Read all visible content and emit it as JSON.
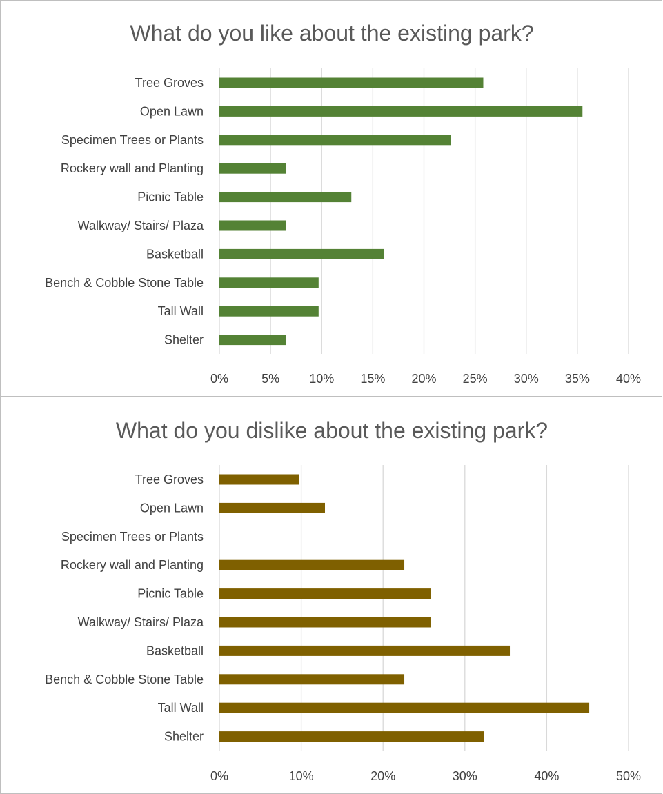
{
  "chart_data": [
    {
      "type": "bar",
      "orientation": "horizontal",
      "title": "What do you like about the existing park?",
      "categories": [
        "Tree Groves",
        "Open Lawn",
        "Specimen Trees or Plants",
        "Rockery wall and Planting",
        "Picnic Table",
        "Walkway/ Stairs/ Plaza",
        "Basketball ",
        "Bench & Cobble Stone Table",
        "Tall Wall",
        "Shelter"
      ],
      "values": [
        0.258,
        0.355,
        0.226,
        0.065,
        0.129,
        0.065,
        0.161,
        0.097,
        0.097,
        0.065
      ],
      "xlim": [
        0,
        0.4
      ],
      "xticks": [
        0,
        0.05,
        0.1,
        0.15,
        0.2,
        0.25,
        0.3,
        0.35,
        0.4
      ],
      "xtick_labels": [
        "0%",
        "5%",
        "10%",
        "15%",
        "20%",
        "25%",
        "30%",
        "35%",
        "40%"
      ],
      "color": "#548235",
      "grid": "vertical",
      "legend": "none",
      "xlabel": "",
      "ylabel": ""
    },
    {
      "type": "bar",
      "orientation": "horizontal",
      "title": "What do you dislike about the existing park?",
      "categories": [
        "Tree Groves",
        "Open Lawn",
        "Specimen Trees or Plants",
        "Rockery wall and Planting",
        "Picnic Table",
        "Walkway/ Stairs/ Plaza",
        "Basketball ",
        "Bench & Cobble Stone Table",
        "Tall Wall",
        "Shelter"
      ],
      "values": [
        0.097,
        0.129,
        0,
        0.226,
        0.258,
        0.258,
        0.355,
        0.226,
        0.452,
        0.323
      ],
      "xlim": [
        0,
        0.5
      ],
      "xticks": [
        0,
        0.1,
        0.2,
        0.3,
        0.4,
        0.5
      ],
      "xtick_labels": [
        "0%",
        "10%",
        "20%",
        "30%",
        "40%",
        "50%"
      ],
      "color": "#7F6000",
      "grid": "vertical",
      "legend": "none",
      "xlabel": "",
      "ylabel": ""
    }
  ]
}
